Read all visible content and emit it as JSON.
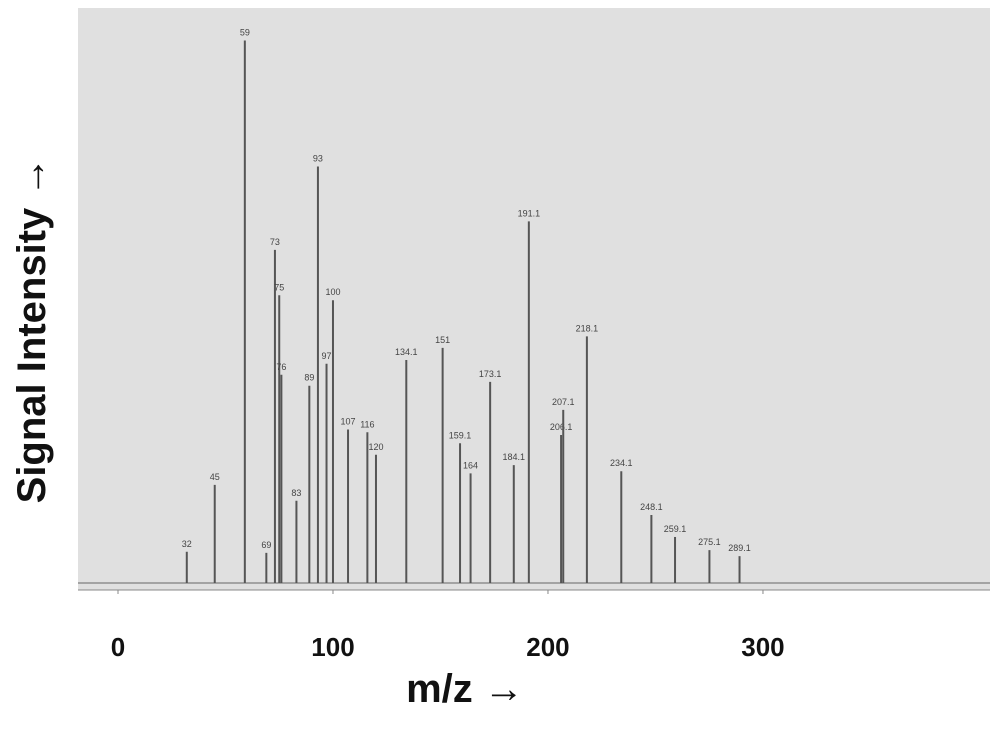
{
  "chart_data": {
    "type": "stem",
    "x_label": "m/z →",
    "y_label": "Signal Intensity →",
    "x": [
      32,
      45,
      59,
      69,
      73,
      75,
      76,
      83,
      89,
      93,
      97,
      100,
      107,
      116,
      120,
      134.1,
      151,
      159.1,
      164,
      173.1,
      184.1,
      191.1,
      206.1,
      207.1,
      218.1,
      234.1,
      248.1,
      259.1,
      275.1,
      289.1
    ],
    "values": [
      5.7,
      17.9,
      99,
      5.5,
      60.8,
      52.5,
      38,
      15,
      36,
      76,
      40,
      51.6,
      28,
      27.5,
      23.4,
      40.7,
      42.9,
      25.5,
      20,
      36.7,
      21.5,
      66,
      27,
      31.6,
      45,
      20.4,
      12.4,
      8.4,
      6,
      4.9
    ],
    "color": "#555555",
    "xlim": [
      -18.6,
      405.6
    ],
    "ylim": [
      0,
      100
    ],
    "xticks": [
      0,
      100,
      200,
      300
    ],
    "grid": false
  }
}
